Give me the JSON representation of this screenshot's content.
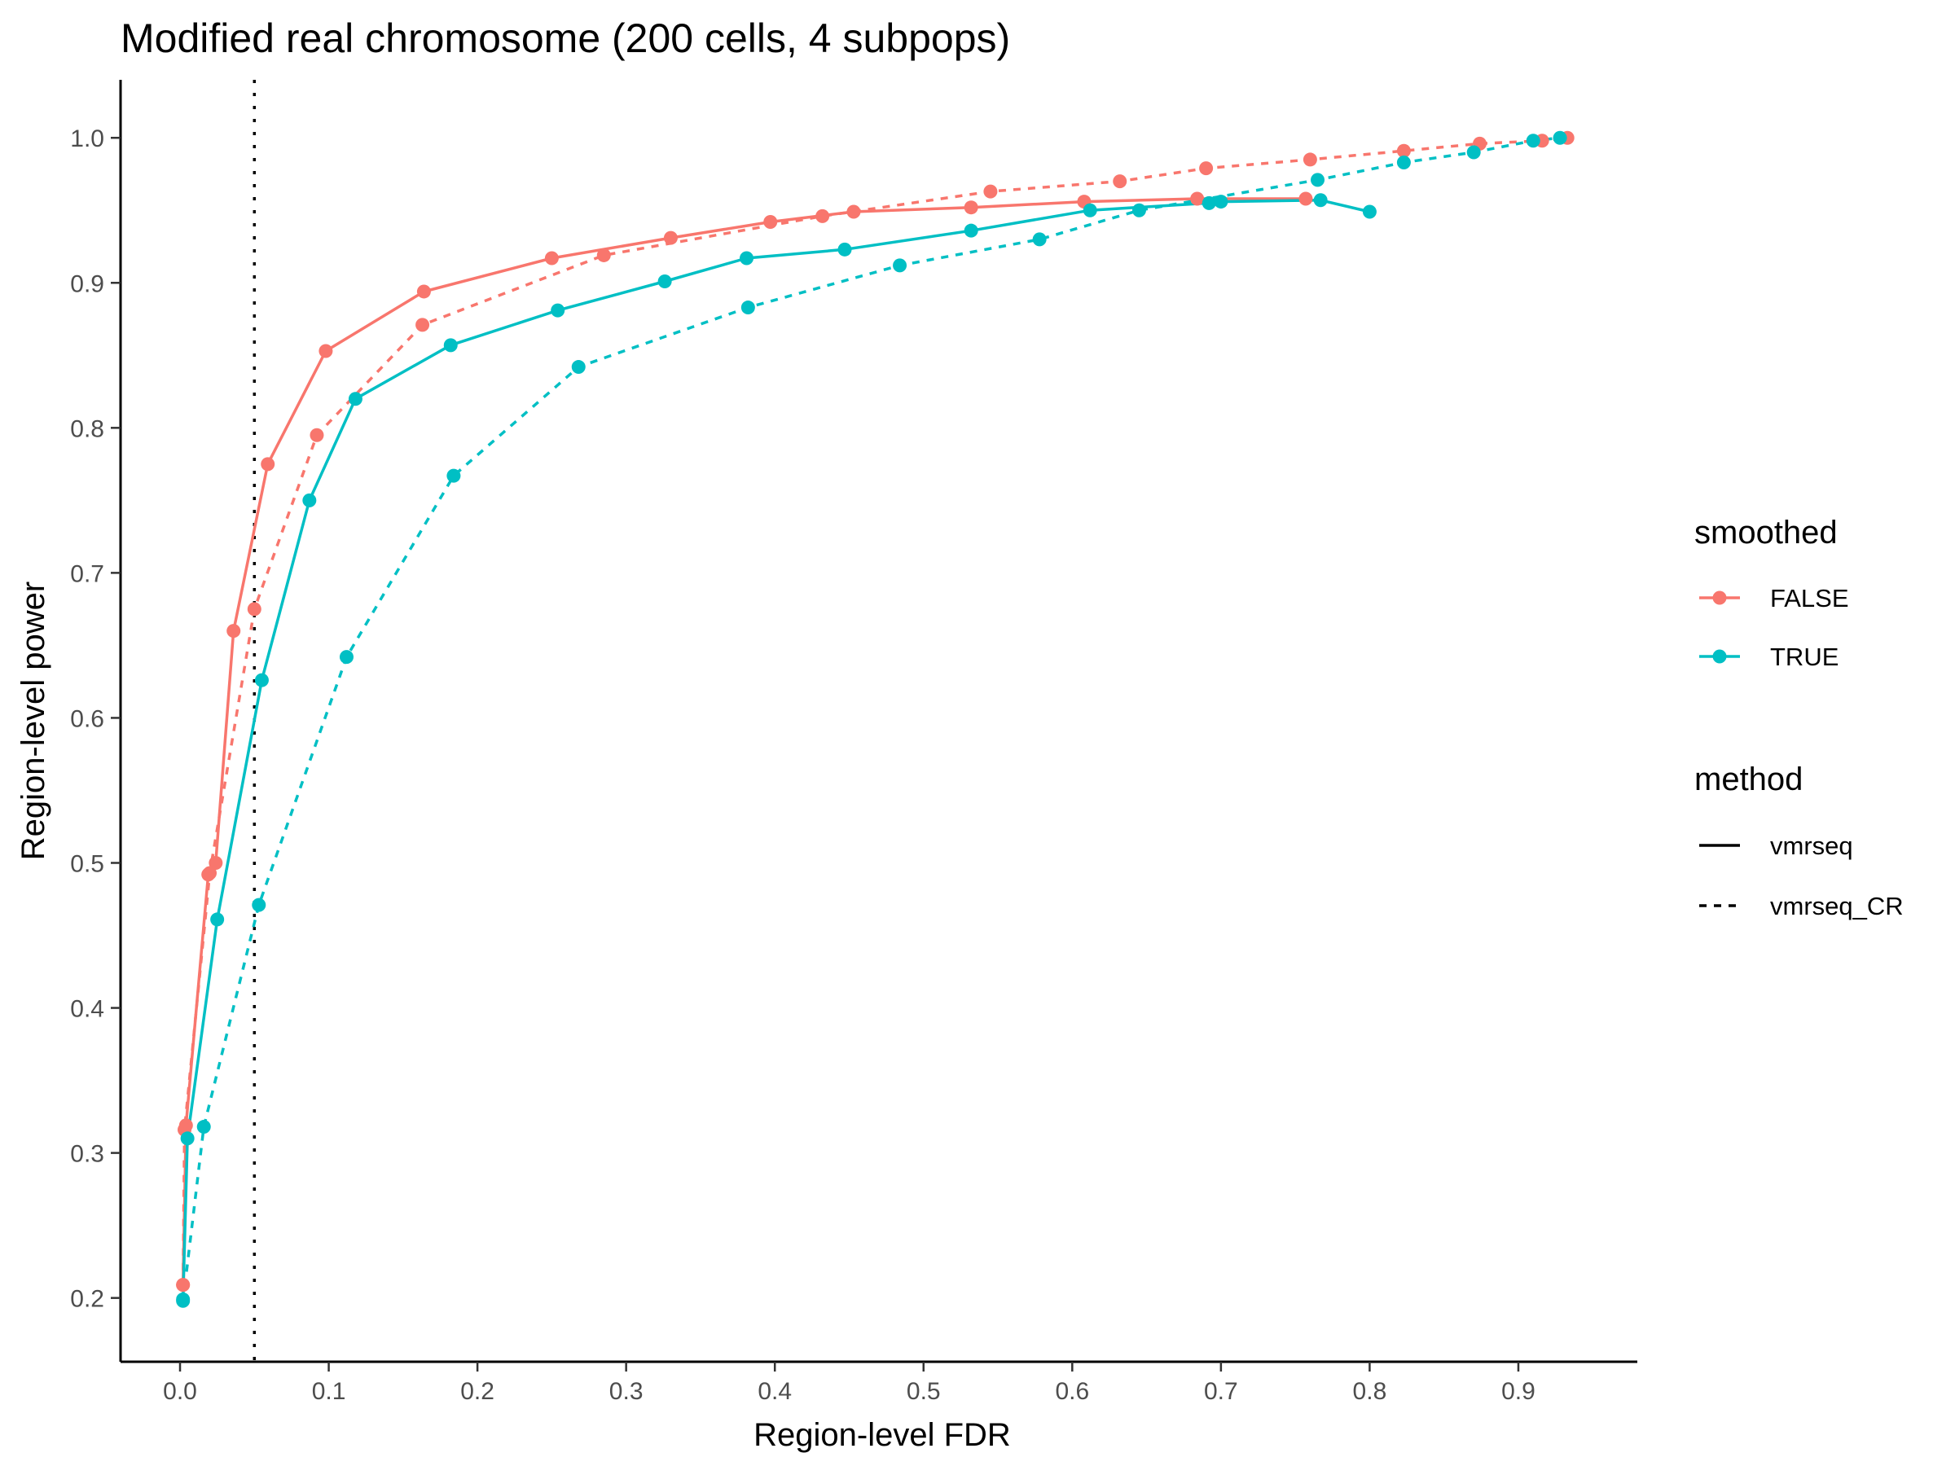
{
  "chart_data": {
    "type": "line",
    "title": "Modified real chromosome (200 cells, 4 subpops)",
    "xlabel": "Region-level FDR",
    "ylabel": "Region-level power",
    "xlim": [
      -0.04,
      0.98
    ],
    "ylim": [
      0.156,
      1.04
    ],
    "x_ticks": [
      0.0,
      0.1,
      0.2,
      0.3,
      0.4,
      0.5,
      0.6,
      0.7,
      0.8,
      0.9
    ],
    "x_tick_labels": [
      "0.0",
      "0.1",
      "0.2",
      "0.3",
      "0.4",
      "0.5",
      "0.6",
      "0.7",
      "0.8",
      "0.9"
    ],
    "y_ticks": [
      0.2,
      0.3,
      0.4,
      0.5,
      0.6,
      0.7,
      0.8,
      0.9,
      1.0
    ],
    "y_tick_labels": [
      "0.2",
      "0.3",
      "0.4",
      "0.5",
      "0.6",
      "0.7",
      "0.8",
      "0.9",
      "1.0"
    ],
    "grid": false,
    "reference_line": {
      "orientation": "vertical",
      "x": 0.05,
      "style": "dotted",
      "color": "#000000"
    },
    "colors": {
      "FALSE": "#F8766D",
      "TRUE": "#00BFC4"
    },
    "legend_placement": "right",
    "legends": [
      {
        "title": "smoothed",
        "entries": [
          {
            "label": "FALSE",
            "color": "#F8766D"
          },
          {
            "label": "TRUE",
            "color": "#00BFC4"
          }
        ]
      },
      {
        "title": "method",
        "entries": [
          {
            "label": "vmrseq",
            "line": "solid"
          },
          {
            "label": "vmrseq_CR",
            "line": "dashed"
          }
        ]
      }
    ],
    "series": [
      {
        "smoothed": "FALSE",
        "method": "vmrseq",
        "color": "#F8766D",
        "line": "solid",
        "x": [
          0.002,
          0.004,
          0.019,
          0.024,
          0.036,
          0.059,
          0.098,
          0.164,
          0.25,
          0.33,
          0.397,
          0.453,
          0.532,
          0.608,
          0.684,
          0.757
        ],
        "y": [
          0.209,
          0.319,
          0.492,
          0.5,
          0.66,
          0.775,
          0.853,
          0.894,
          0.917,
          0.931,
          0.942,
          0.949,
          0.952,
          0.956,
          0.958,
          0.958
        ]
      },
      {
        "smoothed": "FALSE",
        "method": "vmrseq_CR",
        "color": "#F8766D",
        "line": "dashed",
        "x": [
          0.002,
          0.003,
          0.02,
          0.05,
          0.092,
          0.163,
          0.285,
          0.432,
          0.545,
          0.632,
          0.69,
          0.76,
          0.823,
          0.874,
          0.916,
          0.933
        ],
        "y": [
          0.209,
          0.316,
          0.493,
          0.675,
          0.795,
          0.871,
          0.919,
          0.946,
          0.963,
          0.97,
          0.979,
          0.985,
          0.991,
          0.996,
          0.998,
          1.0
        ]
      },
      {
        "smoothed": "TRUE",
        "method": "vmrseq",
        "color": "#00BFC4",
        "line": "solid",
        "x": [
          0.002,
          0.005,
          0.025,
          0.055,
          0.087,
          0.118,
          0.182,
          0.254,
          0.326,
          0.381,
          0.447,
          0.532,
          0.612,
          0.692,
          0.7,
          0.767,
          0.8
        ],
        "y": [
          0.199,
          0.31,
          0.461,
          0.626,
          0.75,
          0.82,
          0.857,
          0.881,
          0.901,
          0.917,
          0.923,
          0.936,
          0.95,
          0.955,
          0.956,
          0.957,
          0.949
        ]
      },
      {
        "smoothed": "TRUE",
        "method": "vmrseq_CR",
        "color": "#00BFC4",
        "line": "dashed",
        "x": [
          0.002,
          0.016,
          0.053,
          0.112,
          0.184,
          0.268,
          0.382,
          0.484,
          0.578,
          0.645,
          0.765,
          0.823,
          0.87,
          0.91,
          0.928
        ],
        "y": [
          0.198,
          0.318,
          0.471,
          0.642,
          0.767,
          0.842,
          0.883,
          0.912,
          0.93,
          0.95,
          0.971,
          0.983,
          0.99,
          0.998,
          1.0
        ]
      }
    ]
  }
}
